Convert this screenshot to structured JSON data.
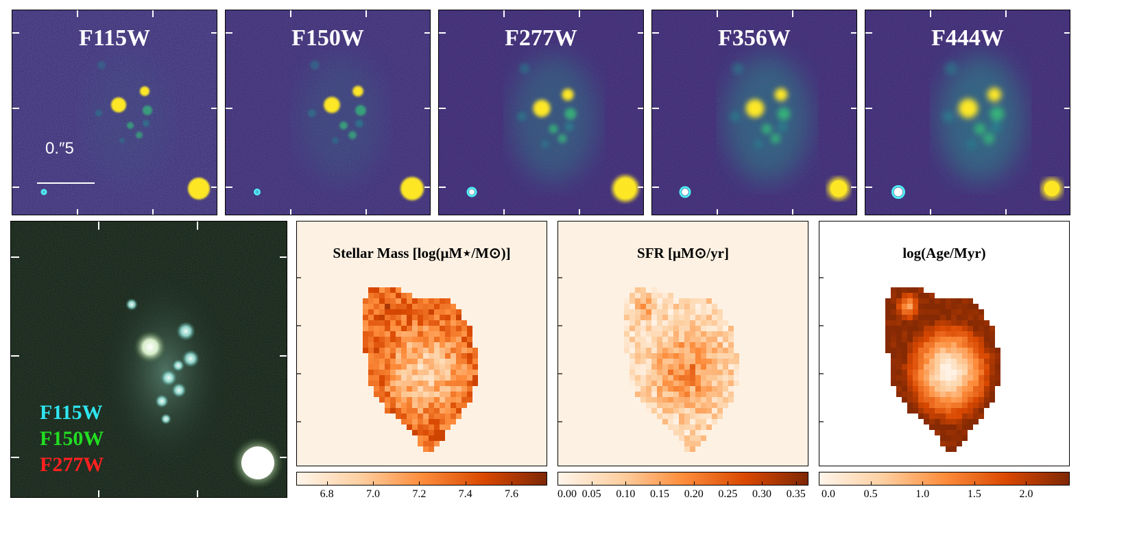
{
  "filters": [
    {
      "label": "F115W"
    },
    {
      "label": "F150W"
    },
    {
      "label": "F277W"
    },
    {
      "label": "F356W"
    },
    {
      "label": "F444W"
    }
  ],
  "scale_label": "0.″5",
  "rgb_legend": [
    {
      "label": "F115W",
      "color": "#2ee6f0"
    },
    {
      "label": "F150W",
      "color": "#22dd22"
    },
    {
      "label": "F277W",
      "color": "#ff2020"
    }
  ],
  "maps": [
    {
      "title": "Stellar Mass [log(μM⋆/M⊙)]",
      "ticks": [
        "6.8",
        "7.0",
        "7.2",
        "7.4",
        "7.6"
      ]
    },
    {
      "title": "SFR [μM⊙/yr]",
      "ticks": [
        "0.00",
        "0.05",
        "0.10",
        "0.15",
        "0.20",
        "0.25",
        "0.30",
        "0.35"
      ]
    },
    {
      "title": "log(Age/Myr)",
      "ticks": [
        "0.0",
        "0.5",
        "1.0",
        "1.5",
        "2.0"
      ]
    }
  ],
  "colors": {
    "image_bg": "#3b1f6b",
    "bright_source": "#fde725",
    "psf_marker": "#4ef0f5",
    "map_cmap_low": "#fff3e6",
    "map_cmap_high": "#7f2704"
  }
}
